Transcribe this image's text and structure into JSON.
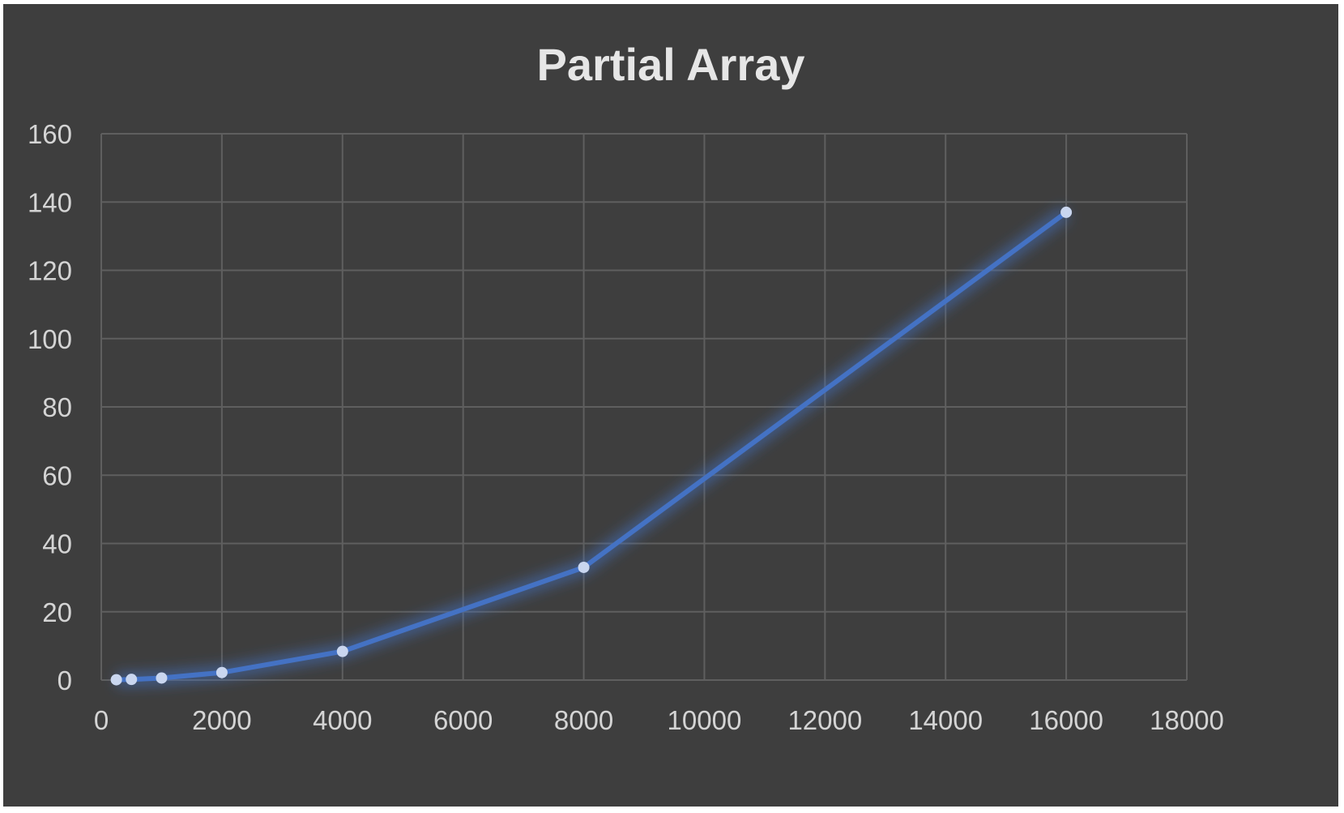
{
  "colors": {
    "background": "#3e3e3e",
    "grid": "#5f5f5f",
    "line": "#4472c4",
    "marker": "#c9d6ef",
    "text": "#d4d4d4"
  },
  "chart_data": {
    "type": "line",
    "title": "Partial Array",
    "xlabel": "",
    "ylabel": "",
    "xlim": [
      0,
      18000
    ],
    "ylim": [
      0,
      160
    ],
    "grid": true,
    "legend": "none",
    "x_ticks": [
      0,
      2000,
      4000,
      6000,
      8000,
      10000,
      12000,
      14000,
      16000,
      18000
    ],
    "y_ticks": [
      0,
      20,
      40,
      60,
      80,
      100,
      120,
      140,
      160
    ],
    "series": [
      {
        "x": [
          250,
          500,
          1000,
          2000,
          4000,
          8000,
          16000
        ],
        "values": [
          0.1,
          0.2,
          0.6,
          2.2,
          8.4,
          33,
          137
        ]
      }
    ]
  }
}
